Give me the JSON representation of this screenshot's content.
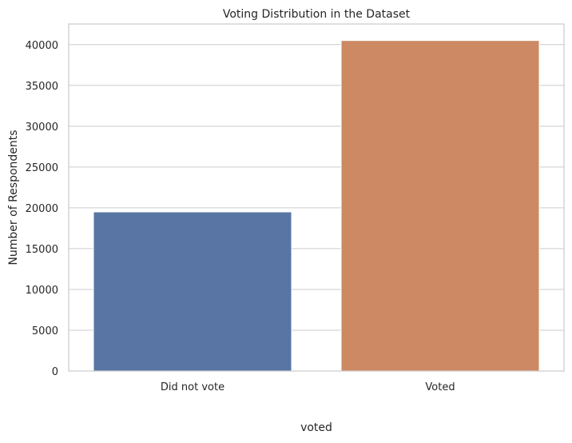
{
  "chart_data": {
    "type": "bar",
    "title": "Voting Distribution in the Dataset",
    "xlabel": "voted",
    "ylabel": "Number of Respondents",
    "categories": [
      "Did not vote",
      "Voted"
    ],
    "values": [
      19500,
      40500
    ],
    "ylim": [
      0,
      42525
    ],
    "yticks": [
      0,
      5000,
      10000,
      15000,
      20000,
      25000,
      30000,
      35000,
      40000
    ],
    "grid": "horizontal",
    "legend": "none",
    "colors": [
      "#5975a4",
      "#cc8963"
    ]
  }
}
